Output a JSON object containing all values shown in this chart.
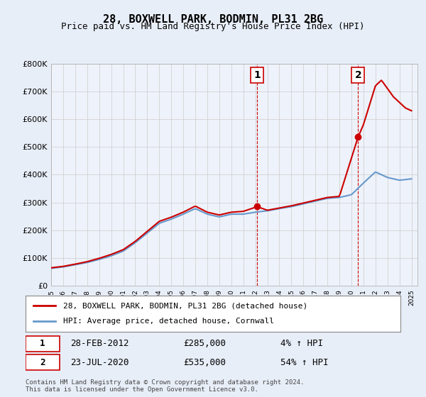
{
  "title": "28, BOXWELL PARK, BODMIN, PL31 2BG",
  "subtitle": "Price paid vs. HM Land Registry's House Price Index (HPI)",
  "legend_line1": "28, BOXWELL PARK, BODMIN, PL31 2BG (detached house)",
  "legend_line2": "HPI: Average price, detached house, Cornwall",
  "sale1_label": "1",
  "sale1_date": "28-FEB-2012",
  "sale1_price": "£285,000",
  "sale1_hpi": "4% ↑ HPI",
  "sale1_year": 2012.15,
  "sale1_value": 285000,
  "sale2_label": "2",
  "sale2_date": "23-JUL-2020",
  "sale2_price": "£535,000",
  "sale2_hpi": "54% ↑ HPI",
  "sale2_year": 2020.55,
  "sale2_value": 535000,
  "ylim": [
    0,
    800000
  ],
  "xlim_start": 1995,
  "xlim_end": 2025.5,
  "background_color": "#e8eef8",
  "plot_bg_color": "#f0f4fc",
  "line_color_red": "#cc0000",
  "line_color_blue": "#6699cc",
  "grid_color": "#cccccc",
  "footer": "Contains HM Land Registry data © Crown copyright and database right 2024.\nThis data is licensed under the Open Government Licence v3.0."
}
